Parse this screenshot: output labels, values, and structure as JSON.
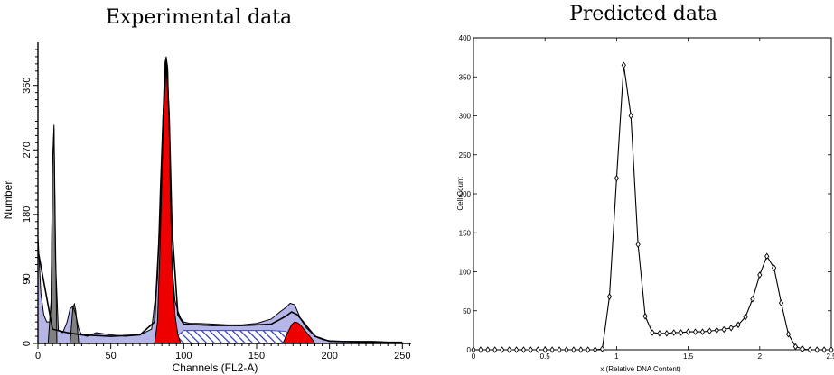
{
  "chart_data": [
    {
      "type": "area",
      "title": "Experimental data",
      "xlabel": "Channels (FL2-A)",
      "ylabel": "Number",
      "xlim": [
        0,
        256
      ],
      "ylim": [
        0,
        420
      ],
      "xticks": [
        0,
        50,
        100,
        150,
        200,
        250
      ],
      "yticks": [
        0,
        90,
        180,
        270,
        360
      ],
      "ytick_labels": [
        "0",
        "90",
        "180",
        "270",
        "360"
      ],
      "grid": false,
      "colors": {
        "debris_fill": "#b5b5e8",
        "g1_peak": "#ee0000",
        "g2_peak": "#ee0000",
        "calibration_peaks": "#808080",
        "s_phase_hatch": "#2a36b4",
        "outline": "#000000"
      },
      "series": [
        {
          "role": "measured-histogram",
          "x": [
            0,
            2,
            4,
            6,
            8,
            9,
            10,
            11,
            12,
            14,
            17,
            20,
            22,
            24,
            26,
            28,
            30,
            34,
            40,
            50,
            60,
            70,
            78,
            82,
            84,
            86,
            87,
            88,
            89,
            90,
            91,
            92,
            94,
            96,
            98,
            100,
            104,
            110,
            120,
            130,
            140,
            150,
            160,
            166,
            170,
            173,
            176,
            178,
            180,
            184,
            188,
            192,
            196,
            200,
            210,
            220,
            230,
            240,
            250
          ],
          "y": [
            150,
            70,
            40,
            30,
            30,
            50,
            250,
            300,
            120,
            18,
            15,
            30,
            48,
            52,
            40,
            20,
            12,
            10,
            15,
            12,
            10,
            12,
            20,
            90,
            220,
            330,
            390,
            400,
            385,
            310,
            200,
            110,
            60,
            45,
            35,
            30,
            28,
            28,
            27,
            26,
            26,
            28,
            34,
            44,
            50,
            56,
            54,
            45,
            35,
            22,
            14,
            8,
            5,
            4,
            3,
            3,
            3,
            2,
            2
          ]
        },
        {
          "role": "model-curve",
          "x": [
            0,
            10,
            20,
            30,
            50,
            70,
            80,
            84,
            86,
            88,
            90,
            92,
            96,
            100,
            120,
            140,
            160,
            170,
            174,
            178,
            184,
            190,
            200,
            250
          ],
          "y": [
            130,
            20,
            15,
            12,
            10,
            12,
            30,
            180,
            320,
            395,
            320,
            160,
            40,
            27,
            25,
            25,
            27,
            38,
            44,
            40,
            25,
            10,
            3,
            1
          ]
        },
        {
          "role": "g1-peak-fill",
          "x": [
            80,
            82,
            84,
            86,
            87,
            88,
            89,
            90,
            91,
            92,
            94,
            96,
            98
          ],
          "y": [
            0,
            30,
            150,
            310,
            370,
            395,
            380,
            300,
            200,
            110,
            40,
            12,
            0
          ]
        },
        {
          "role": "g2-peak-fill",
          "x": [
            168,
            172,
            174,
            176,
            178,
            180,
            184,
            188,
            190
          ],
          "y": [
            0,
            18,
            26,
            30,
            29,
            26,
            16,
            6,
            0
          ]
        },
        {
          "role": "s-phase-hatched",
          "x": [
            90,
            100,
            120,
            140,
            160,
            170,
            176
          ],
          "y": [
            0,
            18,
            18,
            18,
            18,
            17,
            0
          ]
        },
        {
          "role": "calibration-peaks-grey",
          "x": [
            7,
            9,
            10,
            11,
            12,
            13,
            22,
            24,
            25,
            26,
            28
          ],
          "y": [
            0,
            60,
            250,
            305,
            150,
            0,
            0,
            50,
            55,
            45,
            0
          ]
        }
      ]
    },
    {
      "type": "line",
      "title": "Predicted data",
      "xlabel": "x (Relative DNA Content)",
      "ylabel": "Cell Count",
      "xlim": [
        0,
        2.5
      ],
      "ylim": [
        0,
        400
      ],
      "xticks": [
        0,
        0.5,
        1,
        1.5,
        2,
        2.5
      ],
      "xtick_labels": [
        "0",
        "0.5",
        "1",
        "1.5",
        "2",
        "2.5"
      ],
      "yticks": [
        0,
        50,
        100,
        150,
        200,
        250,
        300,
        350,
        400
      ],
      "marker": "diamond",
      "series": [
        {
          "x": [
            0,
            0.05,
            0.1,
            0.15,
            0.2,
            0.25,
            0.3,
            0.35,
            0.4,
            0.45,
            0.5,
            0.55,
            0.6,
            0.65,
            0.7,
            0.75,
            0.8,
            0.85,
            0.9,
            0.95,
            1.0,
            1.05,
            1.1,
            1.15,
            1.2,
            1.25,
            1.3,
            1.35,
            1.4,
            1.45,
            1.5,
            1.55,
            1.6,
            1.65,
            1.7,
            1.75,
            1.8,
            1.85,
            1.9,
            1.95,
            2.0,
            2.05,
            2.1,
            2.15,
            2.2,
            2.25,
            2.3,
            2.35,
            2.4,
            2.45,
            2.5
          ],
          "y": [
            0,
            0,
            0,
            0,
            0,
            0,
            0,
            0,
            0,
            0,
            0,
            0,
            0,
            0,
            0,
            0,
            0,
            0,
            1,
            68,
            220,
            365,
            300,
            135,
            43,
            22,
            21,
            21,
            22,
            22,
            23,
            23,
            23,
            24,
            25,
            26,
            28,
            32,
            42,
            65,
            96,
            120,
            105,
            60,
            20,
            4,
            1,
            0,
            0,
            0,
            0
          ]
        }
      ]
    }
  ]
}
